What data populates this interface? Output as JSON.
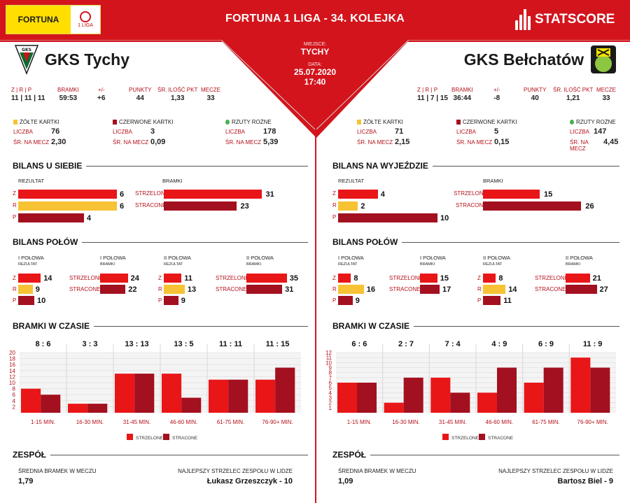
{
  "header": {
    "title": "FORTUNA 1 LIGA - 34. KOLEJKA",
    "sponsor": "FORTUNA",
    "league_badge": "1 LIGA",
    "brand": "STATSCORE"
  },
  "match": {
    "venue_label": "MIEJSCE:",
    "venue": "TYCHY",
    "date_label": "DATA:",
    "date": "25.07.2020",
    "time": "17:40"
  },
  "colors": {
    "red": "#e91618",
    "yellow": "#f7c234",
    "dark_red": "#a3101f",
    "header": "#d3141c"
  },
  "labels": {
    "zrp": "Z | R | P",
    "goals": "BRAMKI",
    "diff": "+/-",
    "points": "PUNKTY",
    "avg_pts": "ŚR. ILOŚĆ PKT",
    "matches": "MECZE",
    "yellow": "ŻÓŁTE KARTKI",
    "red": "CZERWONE KARTKI",
    "corners": "RZUTY ROŻNE",
    "count": "LICZBA",
    "avg": "ŚR. NA MECZ",
    "result": "REZULTAT",
    "goals_col": "BRAMKI",
    "scored": "STRZELONE",
    "conceded": "STRACONE",
    "halves": "BILANS POŁÓW",
    "first_half": "I POŁOWA",
    "second_half": "II POŁOWA",
    "time_title": "BRAMKI W CZASIE",
    "team_title": "ZESPÓŁ",
    "avg_goals": "ŚREDNIA BRAMEK W MECZU",
    "top_scorer": "NAJLEPSZY STRZELEC ZESPOŁU W LIDZE",
    "z": "Z",
    "r": "R",
    "p": "P",
    "legend_scored": "STRZELONE",
    "legend_conceded": "STRACONE"
  },
  "home": {
    "name": "GKS Tychy",
    "zrp": "11 | 11 | 11",
    "goals": "59:53",
    "diff": "+6",
    "points": "44",
    "avg_pts": "1,33",
    "matches": "33",
    "yellow_count": "76",
    "yellow_avg": "2,30",
    "red_count": "3",
    "red_avg": "0,09",
    "corner_count": "178",
    "corner_avg": "5,39",
    "balance_title": "BILANS U SIEBIE",
    "balance": {
      "z": 6,
      "r": 6,
      "p": 4,
      "scored": 31,
      "conceded": 23
    },
    "half1": {
      "z": 14,
      "r": 9,
      "p": 10,
      "scored": 24,
      "conceded": 22
    },
    "half2": {
      "z": 11,
      "r": 13,
      "p": 9,
      "scored": 35,
      "conceded": 31
    },
    "avg_goals": "1,79",
    "top_scorer": "Łukasz Grzeszczyk - 10"
  },
  "away": {
    "name": "GKS Bełchatów",
    "zrp": "11 | 7 | 15",
    "goals": "36:44",
    "diff": "-8",
    "points": "40",
    "avg_pts": "1,21",
    "matches": "33",
    "yellow_count": "71",
    "yellow_avg": "2,15",
    "red_count": "5",
    "red_avg": "0,15",
    "corner_count": "147",
    "corner_avg": "4,45",
    "balance_title": "BILANS NA WYJEŹDZIE",
    "balance": {
      "z": 4,
      "r": 2,
      "p": 10,
      "scored": 15,
      "conceded": 26
    },
    "half1": {
      "z": 8,
      "r": 16,
      "p": 9,
      "scored": 15,
      "conceded": 17
    },
    "half2": {
      "z": 8,
      "r": 14,
      "p": 11,
      "scored": 21,
      "conceded": 27
    },
    "avg_goals": "1,09",
    "top_scorer": "Bartosz Biel - 9"
  },
  "chart_data": [
    {
      "type": "bar",
      "categories": [
        "1-15 MIN.",
        "16-30 MIN.",
        "31-45 MIN.",
        "46-60 MIN.",
        "61-75 MIN.",
        "76-90+ MIN."
      ],
      "scores": [
        "8 : 6",
        "3 : 3",
        "13 : 13",
        "13 : 5",
        "11 : 11",
        "11 : 15"
      ],
      "series": [
        {
          "name": "STRZELONE",
          "values": [
            8,
            3,
            13,
            13,
            11,
            11
          ]
        },
        {
          "name": "STRACONE",
          "values": [
            6,
            3,
            13,
            5,
            11,
            15
          ]
        }
      ],
      "yticks": [
        2,
        4,
        6,
        8,
        10,
        12,
        14,
        16,
        18,
        20
      ],
      "ylim": [
        0,
        20
      ]
    },
    {
      "type": "bar",
      "categories": [
        "1-15 MIN.",
        "16-30 MIN.",
        "31-45 MIN.",
        "46-60 MIN.",
        "61-75 MIN.",
        "76-90+ MIN."
      ],
      "scores": [
        "6 : 6",
        "2 : 7",
        "7 : 4",
        "4 : 9",
        "6 : 9",
        "11 : 9"
      ],
      "series": [
        {
          "name": "STRZELONE",
          "values": [
            6,
            2,
            7,
            4,
            6,
            11
          ]
        },
        {
          "name": "STRACONE",
          "values": [
            6,
            7,
            4,
            9,
            9,
            9
          ]
        }
      ],
      "yticks": [
        1,
        2,
        3,
        4,
        5,
        6,
        7,
        8,
        9,
        10,
        11,
        12
      ],
      "ylim": [
        0,
        12
      ]
    }
  ]
}
